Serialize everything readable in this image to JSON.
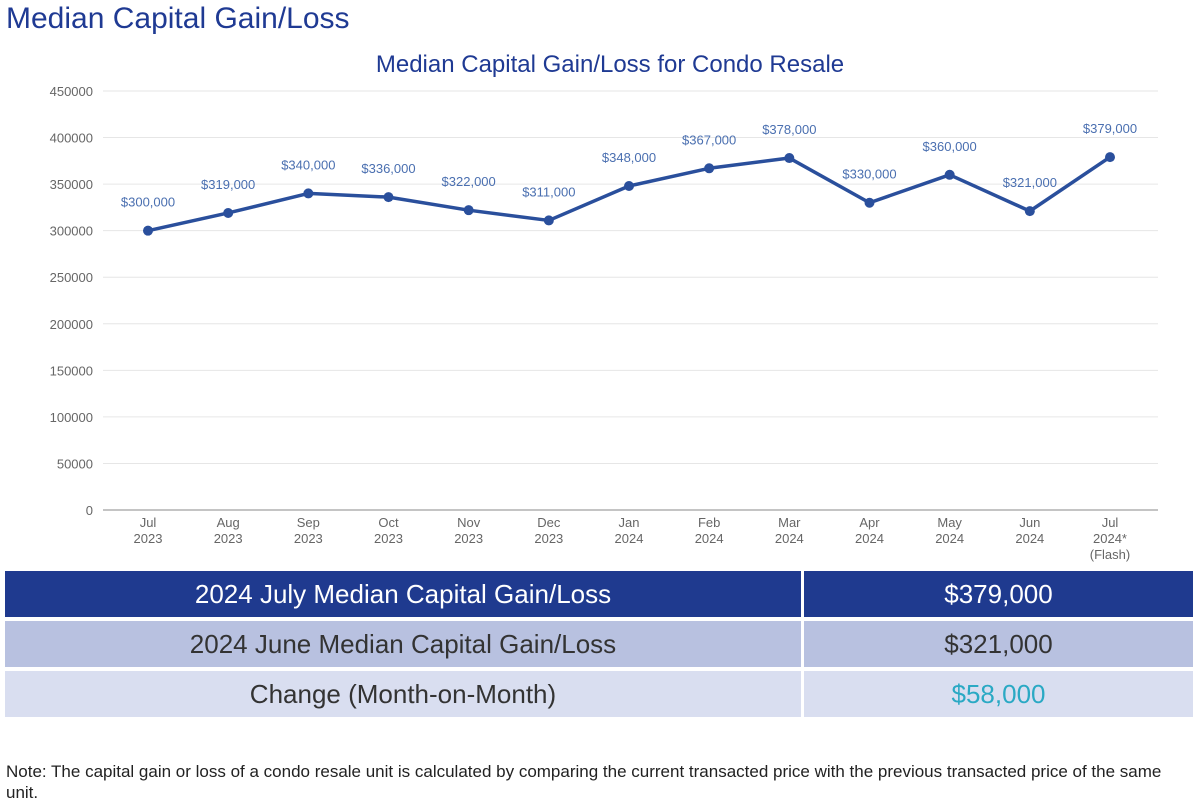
{
  "page_title": "Median Capital Gain/Loss",
  "chart_data": {
    "type": "line",
    "title": "Median Capital Gain/Loss for Condo Resale",
    "xlabel": "",
    "ylabel": "",
    "ylim": [
      0,
      450000
    ],
    "yticks": [
      0,
      50000,
      100000,
      150000,
      200000,
      250000,
      300000,
      350000,
      400000,
      450000
    ],
    "grid": true,
    "categories": [
      [
        "Jul",
        "2023"
      ],
      [
        "Aug",
        "2023"
      ],
      [
        "Sep",
        "2023"
      ],
      [
        "Oct",
        "2023"
      ],
      [
        "Nov",
        "2023"
      ],
      [
        "Dec",
        "2023"
      ],
      [
        "Jan",
        "2024"
      ],
      [
        "Feb",
        "2024"
      ],
      [
        "Mar",
        "2024"
      ],
      [
        "Apr",
        "2024"
      ],
      [
        "May",
        "2024"
      ],
      [
        "Jun",
        "2024"
      ],
      [
        "Jul",
        "2024*",
        "(Flash)"
      ]
    ],
    "values": [
      300000,
      319000,
      340000,
      336000,
      322000,
      311000,
      348000,
      367000,
      378000,
      330000,
      360000,
      321000,
      379000
    ],
    "data_labels": [
      "$300,000",
      "$319,000",
      "$340,000",
      "$336,000",
      "$322,000",
      "$311,000",
      "$348,000",
      "$367,000",
      "$378,000",
      "$330,000",
      "$360,000",
      "$321,000",
      "$379,000"
    ],
    "line_color": "#2a4f9c",
    "label_color": "#4a6fb0"
  },
  "summary": {
    "current_label": "2024 July Median Capital Gain/Loss",
    "current_value": "$379,000",
    "previous_label": "2024 June Median Capital Gain/Loss",
    "previous_value": "$321,000",
    "change_label": "Change (Month-on-Month)",
    "change_value": "$58,000",
    "colors": {
      "header": "#1f3a8f",
      "row2": "#b8c1e0",
      "row3": "#d9def0",
      "change_text": "#2aa9c4"
    }
  },
  "note": "Note: The capital gain or loss of a condo resale unit is calculated by comparing the current transacted price with the previous transacted price of the same unit."
}
